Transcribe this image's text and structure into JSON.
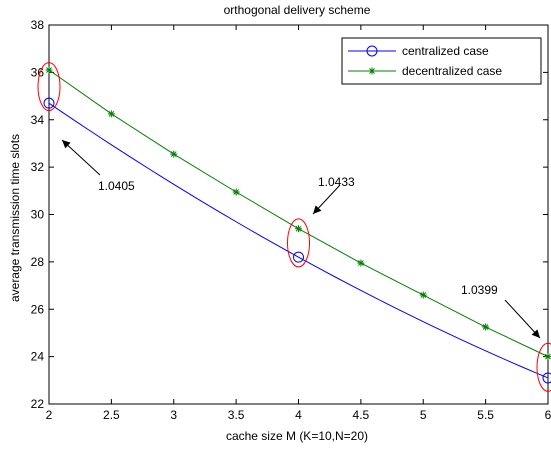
{
  "chart_data": {
    "type": "line",
    "title": "orthogonal delivery scheme",
    "xlabel": "cache size M (K=10,N=20)",
    "ylabel": "average transmission time slots",
    "xlim": [
      2,
      6
    ],
    "ylim": [
      22,
      38
    ],
    "xticks": [
      "2",
      "2.5",
      "3",
      "3.5",
      "4",
      "4.5",
      "5",
      "5.5",
      "6"
    ],
    "yticks": [
      "22",
      "24",
      "26",
      "28",
      "30",
      "32",
      "34",
      "36",
      "38"
    ],
    "grid": false,
    "legend_position": "top-right",
    "series": [
      {
        "name": "centralized case",
        "color": "#0000ff",
        "marker": "circle",
        "x": [
          2,
          4,
          6
        ],
        "y": [
          34.7,
          28.2,
          23.1
        ]
      },
      {
        "name": "decentralized case",
        "color": "#008000",
        "marker": "asterisk",
        "x": [
          2,
          2.5,
          3,
          3.5,
          4,
          4.5,
          5,
          5.5,
          6
        ],
        "y": [
          36.1,
          34.25,
          32.55,
          30.95,
          29.4,
          27.95,
          26.6,
          25.25,
          24.0
        ]
      }
    ],
    "annotations": [
      {
        "text": "1.0405",
        "x": 2,
        "y": 35.4
      },
      {
        "text": "1.0433",
        "x": 4,
        "y": 28.8
      },
      {
        "text": "1.0399",
        "x": 6,
        "y": 23.55
      }
    ],
    "highlight_color": "#ff0000"
  }
}
